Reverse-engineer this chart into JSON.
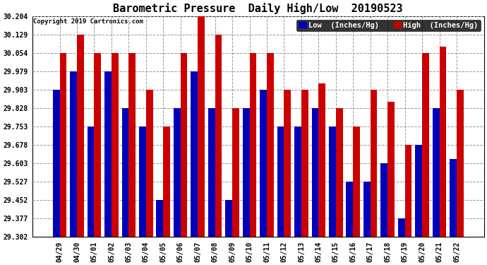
{
  "title": "Barometric Pressure  Daily High/Low  20190523",
  "copyright": "Copyright 2019 Cartronics.com",
  "legend_low": "Low  (Inches/Hg)",
  "legend_high": "High  (Inches/Hg)",
  "low_color": "#0000bb",
  "high_color": "#cc0000",
  "background_color": "#ffffff",
  "plot_background": "#ffffff",
  "ytick_values": [
    29.302,
    29.377,
    29.452,
    29.527,
    29.603,
    29.678,
    29.753,
    29.828,
    29.903,
    29.979,
    30.054,
    30.129,
    30.204
  ],
  "ytick_labels": [
    "29.302",
    "29.377",
    "29.452",
    "29.527",
    "29.603",
    "29.678",
    "29.753",
    "29.828",
    "29.903",
    "29.979",
    "30.054",
    "30.129",
    "30.204"
  ],
  "ymin": 29.302,
  "ymax": 30.204,
  "dates": [
    "04/29",
    "04/30",
    "05/01",
    "05/02",
    "05/03",
    "05/04",
    "05/05",
    "05/06",
    "05/07",
    "05/08",
    "05/09",
    "05/10",
    "05/11",
    "05/12",
    "05/13",
    "05/14",
    "05/15",
    "05/16",
    "05/17",
    "05/18",
    "05/19",
    "05/20",
    "05/21",
    "05/22"
  ],
  "low_values": [
    29.903,
    29.979,
    29.753,
    29.979,
    29.828,
    29.753,
    29.452,
    29.828,
    29.979,
    29.828,
    29.452,
    29.828,
    29.903,
    29.753,
    29.753,
    29.828,
    29.753,
    29.527,
    29.527,
    29.603,
    29.377,
    29.678,
    29.828,
    29.62
  ],
  "high_values": [
    30.054,
    30.129,
    30.054,
    30.054,
    30.054,
    29.903,
    29.753,
    30.054,
    30.204,
    30.129,
    29.828,
    30.054,
    30.054,
    29.903,
    29.903,
    29.928,
    29.828,
    29.753,
    29.903,
    29.853,
    29.678,
    30.054,
    30.079,
    29.903
  ],
  "bar_width": 0.4,
  "base": 29.302,
  "title_fontsize": 11,
  "tick_fontsize": 7,
  "legend_fontsize": 7.5,
  "copyright_fontsize": 6.5
}
